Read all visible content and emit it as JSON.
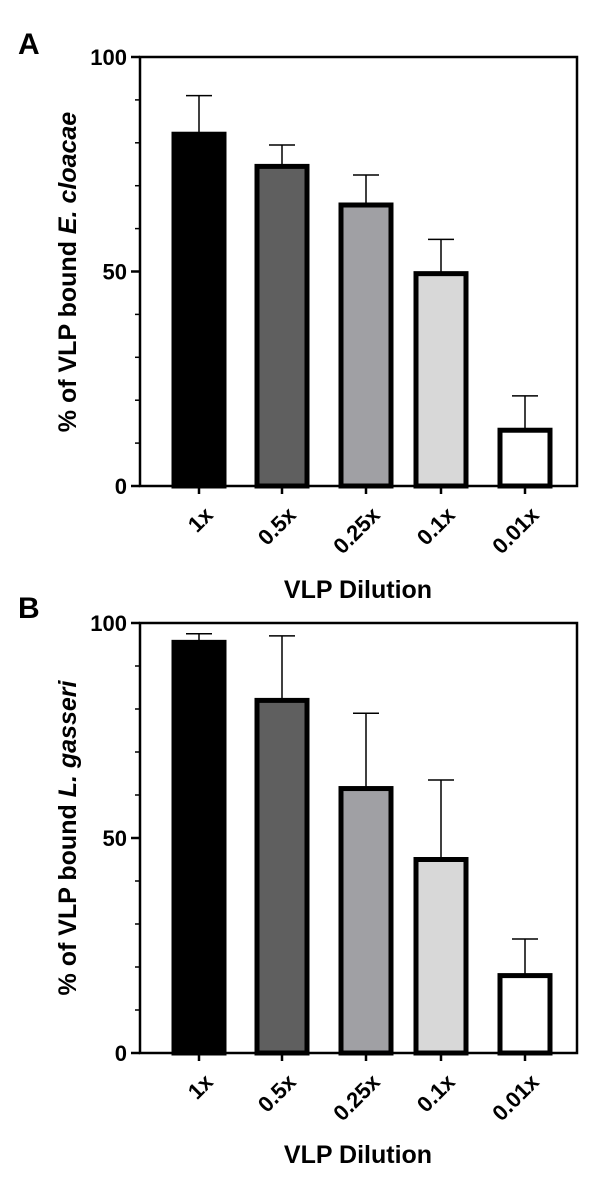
{
  "chart_data": [
    {
      "panel": "A",
      "type": "bar",
      "title": "",
      "categories": [
        "1x",
        "0.5x",
        "0.25x",
        "0.1x",
        "0.01x"
      ],
      "values": [
        82,
        74.5,
        65.5,
        49.5,
        13
      ],
      "errors": [
        9,
        5,
        7,
        8,
        8
      ],
      "colors": [
        "#000000",
        "#5f5f5f",
        "#a0a0a4",
        "#d8d8d8",
        "#ffffff"
      ],
      "xlabel": "VLP Dilution",
      "ylabel_plain": "% of VLP bound ",
      "ylabel_italic": "E. cloacae",
      "ylim": [
        0,
        100
      ],
      "yticks": [
        0,
        50,
        100
      ],
      "grid": false
    },
    {
      "panel": "B",
      "type": "bar",
      "title": "",
      "categories": [
        "1x",
        "0.5x",
        "0.25x",
        "0.1x",
        "0.01x"
      ],
      "values": [
        95.5,
        82,
        61.5,
        45,
        18
      ],
      "errors": [
        2,
        15,
        17.5,
        18.5,
        8.5
      ],
      "colors": [
        "#000000",
        "#5f5f5f",
        "#a0a0a4",
        "#d8d8d8",
        "#ffffff"
      ],
      "xlabel": "VLP Dilution",
      "ylabel_plain": "% of VLP bound ",
      "ylabel_italic": "L. gasseri",
      "ylim": [
        0,
        100
      ],
      "yticks": [
        0,
        50,
        100
      ],
      "grid": false
    }
  ]
}
